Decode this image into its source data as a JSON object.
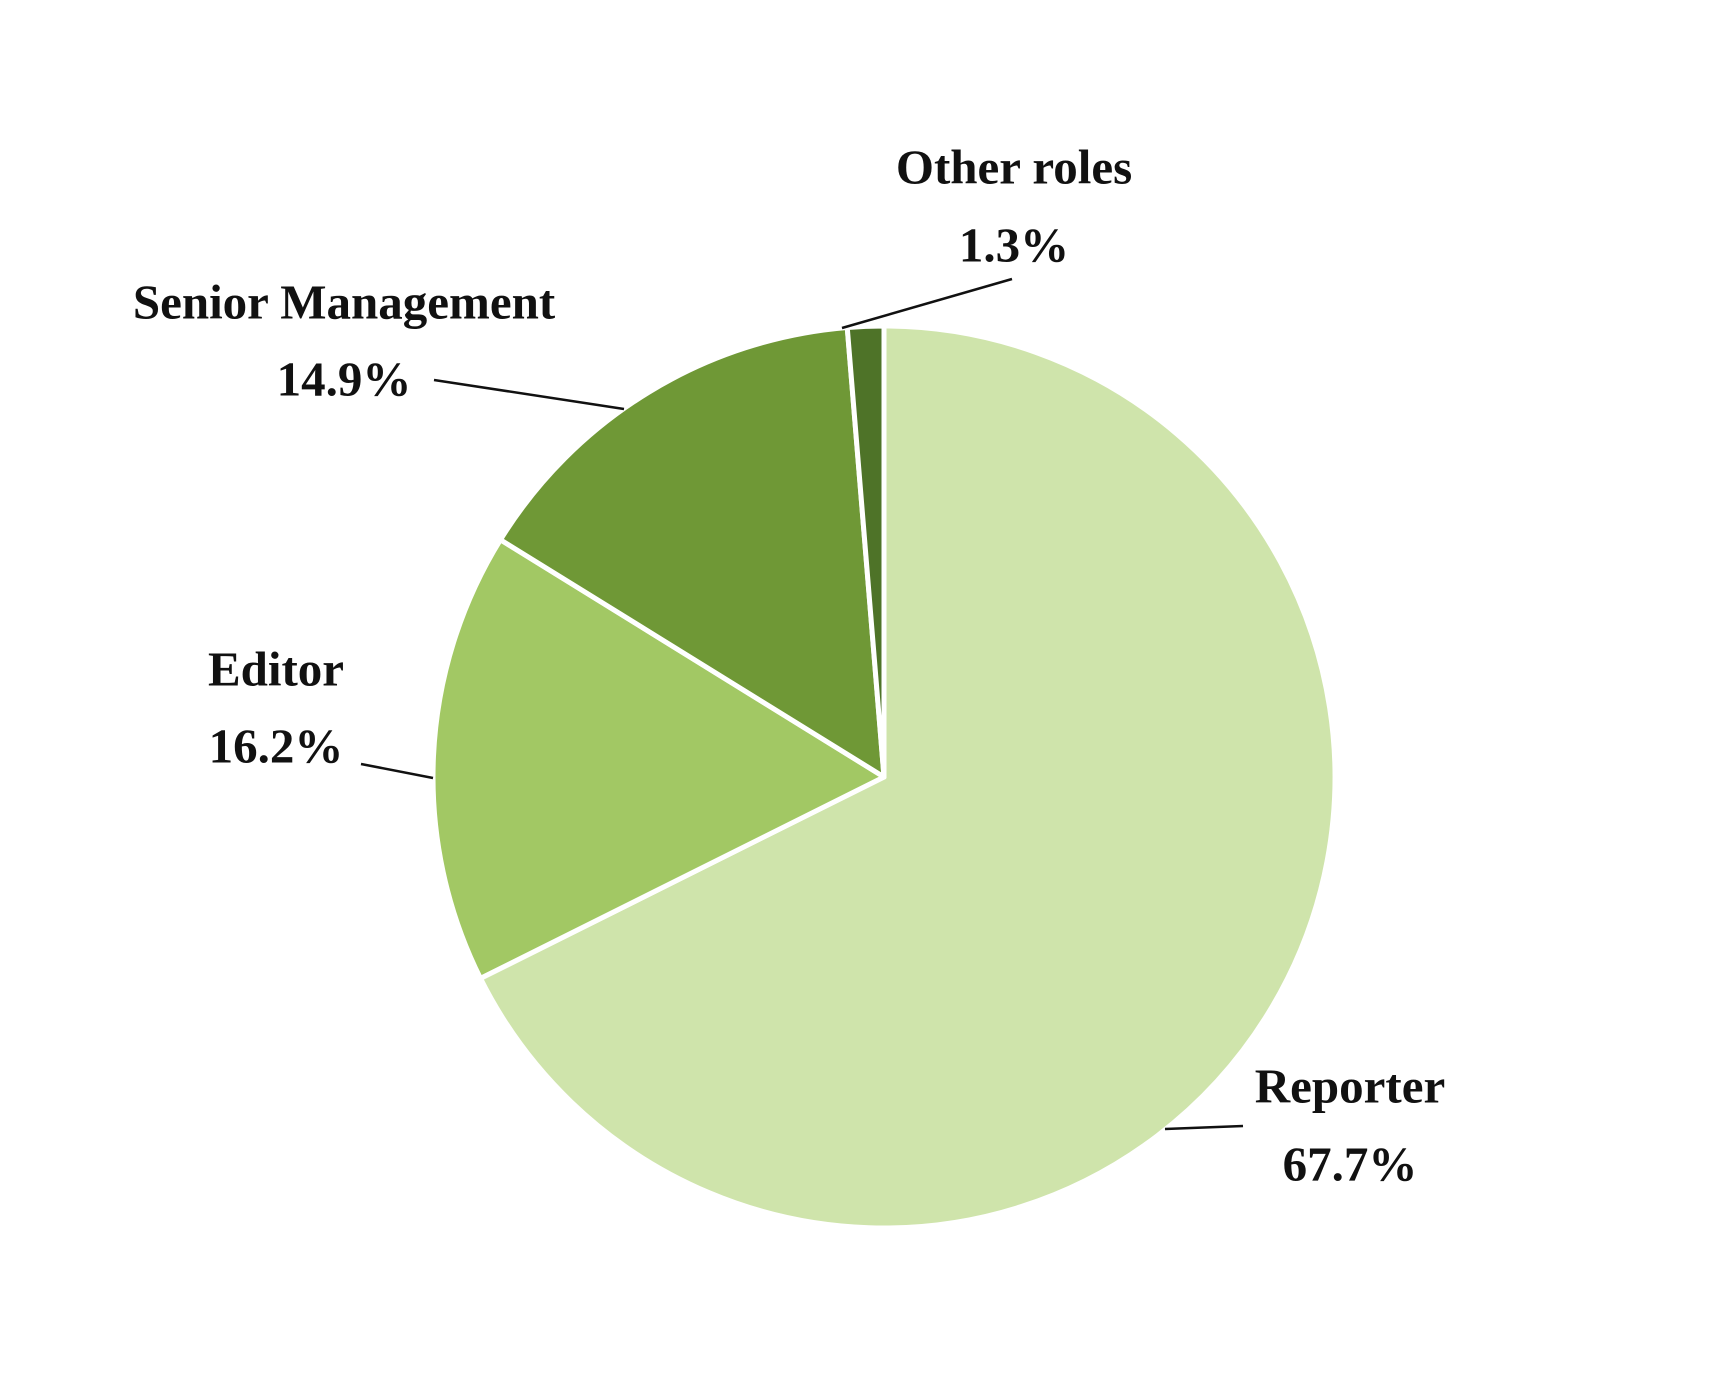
{
  "chart_data": {
    "type": "pie",
    "categories": [
      "Reporter",
      "Editor",
      "Senior Management",
      "Other roles"
    ],
    "values": [
      67.7,
      16.2,
      14.9,
      1.3
    ],
    "value_labels": [
      "67.7%",
      "16.2%",
      "14.9%",
      "1.3%"
    ],
    "colors": [
      "#cfe4ab",
      "#a2c864",
      "#6f9836",
      "#4e7328"
    ]
  }
}
